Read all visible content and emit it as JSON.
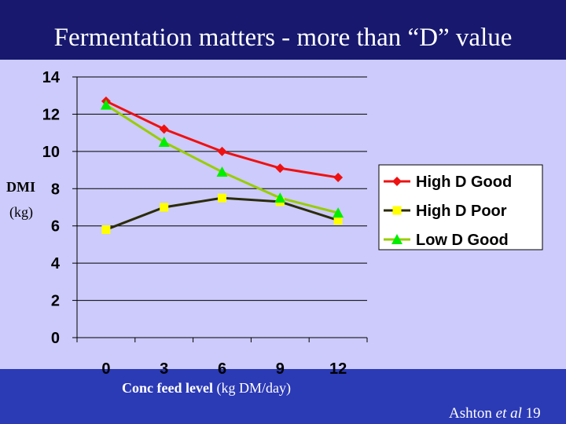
{
  "slide": {
    "title": "Fermentation matters - more than “D” value",
    "citation_author": "Ashton ",
    "citation_etal": "et al",
    "citation_year": " 19"
  },
  "chart_data": {
    "type": "line",
    "xlabel_bold": "Conc feed level",
    "xlabel_unit": " (kg DM/day)",
    "ylabel": "DMI",
    "ylabel_unit": "(kg)",
    "categories": [
      "0",
      "3",
      "6",
      "9",
      "12"
    ],
    "ylim": [
      0,
      14
    ],
    "yticks": [
      0,
      2,
      4,
      6,
      8,
      10,
      12,
      14
    ],
    "grid": true,
    "legend_position": "right",
    "series": [
      {
        "name": "High D Good",
        "color": "#ee1111",
        "marker": "diamond",
        "values": [
          12.7,
          11.2,
          10.0,
          9.1,
          8.6
        ]
      },
      {
        "name": "High D Poor",
        "color": "#2b2b0a",
        "marker_color": "#ffff00",
        "marker": "square",
        "values": [
          5.8,
          7.0,
          7.5,
          7.3,
          6.3
        ]
      },
      {
        "name": "Low D Good",
        "color": "#99cc00",
        "marker_color": "#00ee00",
        "marker": "triangle",
        "values": [
          12.5,
          10.5,
          8.9,
          7.5,
          6.7
        ]
      }
    ]
  },
  "colors": {
    "background": "#cccbfb",
    "title_band": "#17186e",
    "footer_band": "#2b3ab5"
  }
}
